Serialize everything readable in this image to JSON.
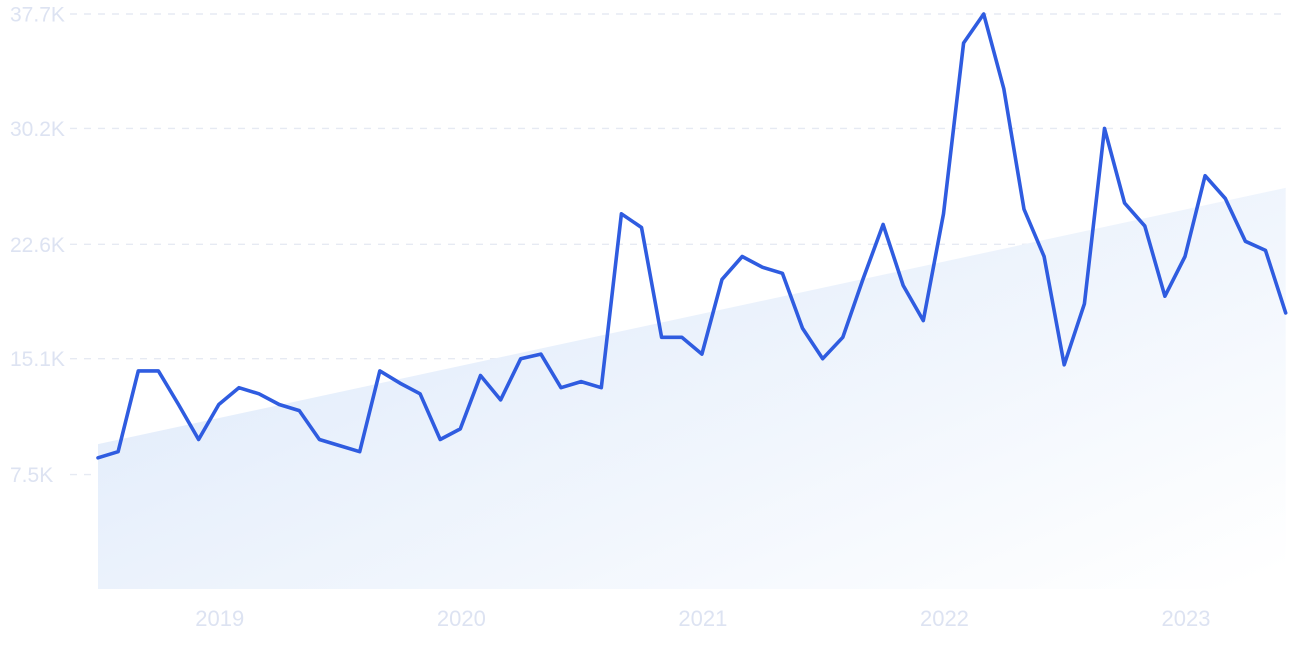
{
  "chart_data": {
    "type": "line",
    "title": "",
    "xlabel": "",
    "ylabel": "",
    "ylim": [
      0,
      37700
    ],
    "y_ticks": [
      {
        "value": 7500,
        "label": "7.5K"
      },
      {
        "value": 15100,
        "label": "15.1K"
      },
      {
        "value": 22600,
        "label": "22.6K"
      },
      {
        "value": 30200,
        "label": "30.2K"
      },
      {
        "value": 37700,
        "label": "37.7K"
      }
    ],
    "x_ticks": [
      {
        "value": "2019-01",
        "label": "2019"
      },
      {
        "value": "2020-01",
        "label": "2020"
      },
      {
        "value": "2021-01",
        "label": "2021"
      },
      {
        "value": "2022-01",
        "label": "2022"
      },
      {
        "value": "2023-01",
        "label": "2023"
      }
    ],
    "grid": true,
    "legend": "none",
    "series": [
      {
        "color": "#2f5ce0",
        "x": [
          "2018-07",
          "2018-08",
          "2018-09",
          "2018-10",
          "2018-11",
          "2018-12",
          "2019-01",
          "2019-02",
          "2019-03",
          "2019-04",
          "2019-05",
          "2019-06",
          "2019-07",
          "2019-08",
          "2019-09",
          "2019-10",
          "2019-11",
          "2019-12",
          "2020-01",
          "2020-02",
          "2020-03",
          "2020-04",
          "2020-05",
          "2020-06",
          "2020-07",
          "2020-08",
          "2020-09",
          "2020-10",
          "2020-11",
          "2020-12",
          "2021-01",
          "2021-02",
          "2021-03",
          "2021-04",
          "2021-05",
          "2021-06",
          "2021-07",
          "2021-08",
          "2021-09",
          "2021-10",
          "2021-11",
          "2021-12",
          "2022-01",
          "2022-02",
          "2022-03",
          "2022-04",
          "2022-05",
          "2022-06",
          "2022-07",
          "2022-08",
          "2022-09",
          "2022-10",
          "2022-11",
          "2022-12",
          "2023-01",
          "2023-02",
          "2023-03",
          "2023-04",
          "2023-05",
          "2023-06"
        ],
        "values": [
          8600,
          9000,
          14300,
          14300,
          12100,
          9800,
          12100,
          13200,
          12800,
          12100,
          11700,
          9800,
          9400,
          9000,
          14300,
          13500,
          12800,
          9800,
          10500,
          14000,
          12400,
          15100,
          15400,
          13200,
          13600,
          13200,
          24600,
          23700,
          16500,
          16500,
          15400,
          20300,
          21800,
          21100,
          20700,
          17100,
          15100,
          16500,
          20300,
          23900,
          19900,
          17600,
          24600,
          35800,
          37700,
          32800,
          24900,
          21800,
          14700,
          18700,
          30200,
          25300,
          23800,
          19200,
          21800,
          27100,
          25600,
          22800,
          22200,
          18100
        ]
      },
      {
        "type": "area",
        "name": "",
        "x": [
          "2018-07",
          "2023-06"
        ],
        "values": [
          9500,
          26300
        ]
      }
    ]
  }
}
